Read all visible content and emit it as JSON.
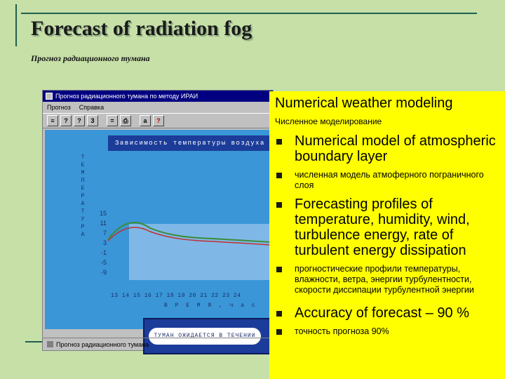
{
  "slide": {
    "title": "Forecast of radiation fog",
    "subtitle": "Прогноз радиационного тумана"
  },
  "app": {
    "window_title": "Прогноз радиационного тумана по методу ИРАИ",
    "menu": [
      "Прогноз",
      "Справка"
    ],
    "toolbar_buttons": [
      "?",
      "?",
      "3",
      "=",
      "?"
    ],
    "chart_header": "Зависимость температуры воздуха и точки росы",
    "y_axis_vertical": [
      "Т",
      "Е",
      "М",
      "П",
      "Е",
      "Р",
      "А",
      "Т",
      "У",
      "Р",
      "А"
    ],
    "y_ticks": [
      "15",
      "11",
      "7",
      "3",
      "-1",
      "-5",
      "-9"
    ],
    "x_ticks": "13 14 15 16 17 18 19 20 21 22 23 24",
    "x_axis_label": "В Р Е М Я , ч а с",
    "forecast_banner": "ТУМАН ОЖИДАЕТСЯ В ТЕЧЕНИИ",
    "statusbar": "Прогноз радиационного тумана"
  },
  "panel": {
    "heading": "Numerical weather modeling",
    "subheading": "Численное моделирование",
    "bullets": [
      {
        "text": "Numerical model of atmospheric boundary layer",
        "size": "big"
      },
      {
        "text": "численная модель атмоферного пограничного слоя",
        "size": "small"
      },
      {
        "text": "Forecasting profiles of temperature, humidity, wind, turbulence energy, rate of turbulent energy dissipation",
        "size": "big"
      },
      {
        "text": "прогностические профили температуры, влажности, ветра, энергии турбулентности, скорости диссипации турбулентной энергии",
        "size": "small"
      },
      {
        "text": "Accuracy of forecast – 90 %",
        "size": "big"
      },
      {
        "text": "точность прогноза 90%",
        "size": "small"
      }
    ]
  },
  "colors": {
    "slide_background": "#c6e0a8",
    "panel_background": "#ffff00",
    "chart_background": "#3a96d6",
    "header_blue": "#1c3c9a",
    "temperature_curve": "#3c8c3c",
    "dewpoint_curve": "#c03030"
  }
}
